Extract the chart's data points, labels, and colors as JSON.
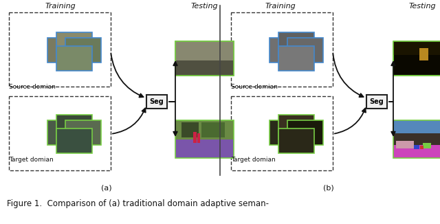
{
  "bg_color": "#ffffff",
  "fig_width": 6.4,
  "fig_height": 3.26,
  "caption": "Figure 1.  Comparison of (a) traditional domain adaptive seman-",
  "label_a": "(a)",
  "label_b": "(b)"
}
